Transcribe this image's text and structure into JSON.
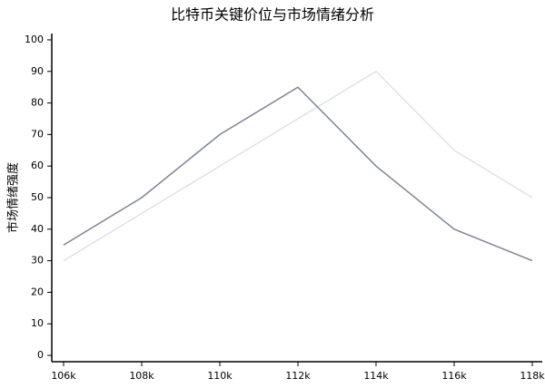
{
  "chart_data": {
    "type": "line",
    "title": "比特币关键价位与市场情绪分析",
    "y_label": "市场情绪强度",
    "categories": [
      "106k",
      "108k",
      "110k",
      "112k",
      "114k",
      "116k",
      "118k"
    ],
    "series": [
      {
        "color": "#7d8595",
        "values": [
          35,
          50,
          70,
          85,
          60,
          40,
          30
        ]
      },
      {
        "color": "#dde1ea",
        "values": [
          30,
          45,
          60,
          75,
          90,
          65,
          50
        ]
      }
    ],
    "ylim": [
      -2,
      102
    ],
    "yticks": [
      0,
      10,
      20,
      30,
      40,
      50,
      60,
      70,
      80,
      90,
      100
    ],
    "grid": false
  }
}
